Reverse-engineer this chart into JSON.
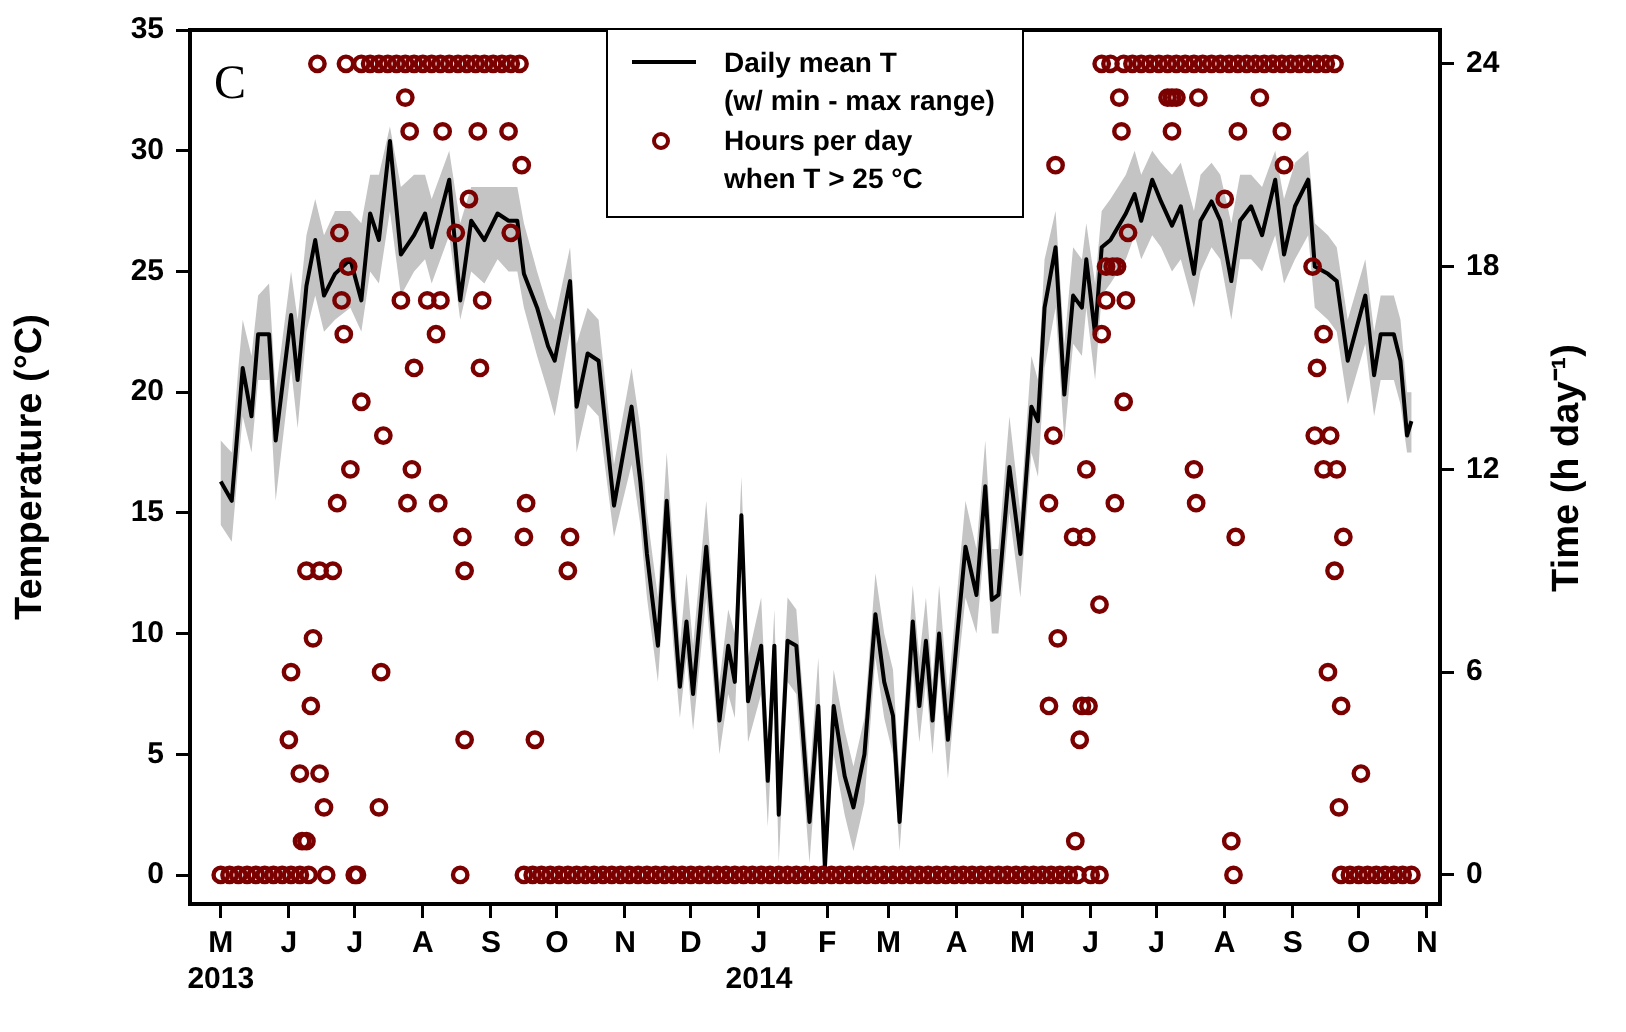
{
  "chart_data": {
    "type": "line",
    "ylabel": "Temperature (°C)",
    "y2label": "Time (h day⁻¹)",
    "annotations": [
      "C"
    ],
    "legend": "top",
    "xlim": [
      "2013-04-17",
      "2014-11-07"
    ],
    "xticks": [
      {
        "value": "2013-05-01",
        "label": "M\n2013"
      },
      {
        "value": "2013-06-01",
        "label": "J"
      },
      {
        "value": "2013-07-01",
        "label": "J"
      },
      {
        "value": "2013-08-01",
        "label": "A"
      },
      {
        "value": "2013-09-01",
        "label": "S"
      },
      {
        "value": "2013-10-01",
        "label": "O"
      },
      {
        "value": "2013-11-01",
        "label": "N"
      },
      {
        "value": "2013-12-01",
        "label": "D"
      },
      {
        "value": "2014-01-01",
        "label": "J\n2014"
      },
      {
        "value": "2014-02-01",
        "label": "F"
      },
      {
        "value": "2014-03-01",
        "label": "M"
      },
      {
        "value": "2014-04-01",
        "label": "A"
      },
      {
        "value": "2014-05-01",
        "label": "M"
      },
      {
        "value": "2014-06-01",
        "label": "J"
      },
      {
        "value": "2014-07-01",
        "label": "J"
      },
      {
        "value": "2014-08-01",
        "label": "A"
      },
      {
        "value": "2014-09-01",
        "label": "S"
      },
      {
        "value": "2014-10-01",
        "label": "O"
      },
      {
        "value": "2014-11-01",
        "label": "N"
      }
    ],
    "ylim": [
      -1.2,
      35
    ],
    "yticks": [
      0,
      5,
      10,
      15,
      20,
      25,
      30,
      35
    ],
    "y2lim": [
      -0.86,
      25
    ],
    "y2ticks": [
      0,
      6,
      12,
      18,
      24
    ],
    "series": [
      {
        "name": "Daily mean T\n(w/ min - max range)",
        "color": "#000000",
        "marker": "none",
        "x": [
          "2013-05-01",
          "2013-05-06",
          "2013-05-09",
          "2013-05-11",
          "2013-05-15",
          "2013-05-18",
          "2013-05-23",
          "2013-05-26",
          "2013-06-02",
          "2013-06-05",
          "2013-06-09",
          "2013-06-13",
          "2013-06-17",
          "2013-06-22",
          "2013-06-29",
          "2013-07-04",
          "2013-07-08",
          "2013-07-12",
          "2013-07-17",
          "2013-07-22",
          "2013-07-28",
          "2013-08-02",
          "2013-08-05",
          "2013-08-13",
          "2013-08-18",
          "2013-08-23",
          "2013-08-29",
          "2013-09-04",
          "2013-09-09",
          "2013-09-13",
          "2013-09-16",
          "2013-09-22",
          "2013-09-27",
          "2013-09-30",
          "2013-10-07",
          "2013-10-10",
          "2013-10-15",
          "2013-10-20",
          "2013-10-27",
          "2013-11-04",
          "2013-11-08",
          "2013-11-11",
          "2013-11-16",
          "2013-11-20",
          "2013-11-23",
          "2013-11-26",
          "2013-11-29",
          "2013-12-02",
          "2013-12-08",
          "2013-12-14",
          "2013-12-18",
          "2013-12-21",
          "2013-12-24",
          "2013-12-27",
          "2014-01-02",
          "2014-01-05",
          "2014-01-08",
          "2014-01-10",
          "2014-01-14",
          "2014-01-18",
          "2014-01-24",
          "2014-01-28",
          "2014-01-31",
          "2014-02-04",
          "2014-02-09",
          "2014-02-13",
          "2014-02-18",
          "2014-02-23",
          "2014-02-27",
          "2014-03-03",
          "2014-03-06",
          "2014-03-12",
          "2014-03-15",
          "2014-03-18",
          "2014-03-21",
          "2014-03-24",
          "2014-03-28",
          "2014-04-01",
          "2014-04-05",
          "2014-04-10",
          "2014-04-14",
          "2014-04-17",
          "2014-04-20",
          "2014-04-25",
          "2014-04-30",
          "2014-05-05",
          "2014-05-08",
          "2014-05-11",
          "2014-05-16",
          "2014-05-20",
          "2014-05-24",
          "2014-05-28",
          "2014-05-30",
          "2014-06-03",
          "2014-06-06",
          "2014-06-10",
          "2014-06-17",
          "2014-06-21",
          "2014-06-24",
          "2014-06-29",
          "2014-07-03",
          "2014-07-08",
          "2014-07-12",
          "2014-07-18",
          "2014-07-21",
          "2014-07-26",
          "2014-07-30",
          "2014-08-04",
          "2014-08-08",
          "2014-08-13",
          "2014-08-18",
          "2014-08-24",
          "2014-08-28",
          "2014-09-02",
          "2014-09-08",
          "2014-09-11",
          "2014-09-17",
          "2014-09-21",
          "2014-09-26",
          "2014-10-04",
          "2014-10-08",
          "2014-10-11",
          "2014-10-17",
          "2014-10-20",
          "2014-10-23",
          "2014-10-25"
        ],
        "values": [
          16.3,
          15.5,
          18.8,
          21.0,
          19.0,
          22.4,
          22.4,
          18.0,
          23.2,
          20.5,
          24.4,
          26.3,
          24.0,
          24.9,
          25.5,
          23.8,
          27.4,
          26.3,
          30.4,
          25.7,
          26.5,
          27.4,
          26.0,
          28.8,
          23.8,
          27.1,
          26.3,
          27.4,
          27.1,
          27.1,
          24.9,
          23.5,
          21.9,
          21.3,
          24.6,
          19.4,
          21.6,
          21.3,
          15.3,
          19.4,
          16.3,
          13.3,
          9.5,
          15.5,
          11.4,
          7.8,
          10.5,
          7.5,
          13.6,
          6.4,
          9.5,
          8.0,
          14.9,
          7.2,
          9.5,
          3.9,
          9.5,
          2.5,
          9.7,
          9.5,
          2.2,
          7.0,
          0.3,
          7.0,
          4.1,
          2.8,
          5.0,
          10.8,
          8.0,
          6.6,
          2.2,
          10.5,
          7.0,
          9.7,
          6.4,
          10.0,
          5.6,
          9.7,
          13.6,
          11.6,
          16.1,
          11.4,
          11.6,
          16.9,
          13.3,
          19.4,
          18.8,
          23.5,
          26.0,
          19.9,
          24.0,
          23.5,
          25.5,
          22.4,
          26.0,
          26.3,
          27.4,
          28.2,
          27.1,
          28.8,
          27.9,
          26.9,
          27.7,
          24.9,
          27.1,
          27.9,
          27.1,
          24.6,
          27.1,
          27.7,
          26.5,
          28.8,
          25.7,
          27.7,
          28.8,
          25.2,
          24.9,
          24.6,
          21.3,
          24.0,
          20.7,
          22.4,
          22.4,
          21.3,
          18.2,
          18.8
        ],
        "lower": [
          14.5,
          13.8,
          17,
          19,
          17.5,
          20.5,
          20.5,
          15.5,
          21,
          18.5,
          22.5,
          24,
          22.5,
          23,
          23.5,
          22.5,
          25,
          24.5,
          27.5,
          24,
          25,
          25.5,
          24.5,
          26.5,
          23,
          25,
          24.5,
          25.5,
          25,
          25,
          23.5,
          21.5,
          20,
          19,
          22.5,
          17.5,
          19.5,
          19,
          14,
          17,
          14.5,
          11.5,
          8,
          13.5,
          9.5,
          6.5,
          9,
          6,
          11.5,
          5,
          7.5,
          6.5,
          13,
          5.5,
          7.5,
          2,
          7.5,
          0.5,
          8,
          7.5,
          0.5,
          5.5,
          0,
          5,
          2.5,
          1,
          3,
          9,
          6.5,
          5,
          1,
          8.5,
          5.5,
          8,
          5,
          8.5,
          4,
          8,
          11.5,
          10,
          14,
          10,
          10,
          15,
          11.5,
          17.5,
          16.5,
          21,
          23.5,
          18,
          22,
          21.5,
          23.5,
          20.5,
          24,
          24.5,
          25.5,
          26.5,
          25.5,
          26.5,
          26,
          25,
          25.5,
          23.5,
          25,
          26,
          25.5,
          23,
          25.5,
          25.5,
          25,
          26.5,
          24.5,
          25.5,
          26.5,
          23.5,
          23,
          22.5,
          19.5,
          22,
          19,
          20.5,
          20.5,
          19.5,
          17.5,
          17.5
        ],
        "upper": [
          18,
          17.5,
          21,
          23,
          21.5,
          24,
          24.5,
          20,
          25,
          23,
          26.5,
          28,
          26.5,
          27.5,
          27.5,
          27,
          29,
          29,
          31,
          28.5,
          29,
          29,
          28,
          30,
          27,
          28.5,
          28.5,
          28.5,
          28.5,
          28.5,
          27,
          25,
          23.5,
          23,
          26,
          22,
          23.5,
          23,
          17,
          21,
          18.5,
          15,
          11.5,
          17.5,
          13.5,
          9.5,
          12.5,
          9.5,
          15.5,
          8,
          11,
          10,
          16.5,
          9,
          11.5,
          5.5,
          11,
          4.5,
          11.5,
          11,
          4,
          9,
          2,
          8.5,
          6,
          4.5,
          6.5,
          12.5,
          10,
          8.5,
          4,
          12,
          9,
          11.5,
          8,
          12,
          7.5,
          11.5,
          15.5,
          13.5,
          18,
          13.5,
          13.5,
          19,
          15,
          21.5,
          20.5,
          25.5,
          27.5,
          22,
          26,
          25.5,
          27,
          24.5,
          27.5,
          28,
          29,
          30,
          29,
          30,
          29.5,
          29,
          29.5,
          27.5,
          29,
          29.5,
          29,
          27,
          29,
          29,
          28.5,
          30,
          28,
          29.5,
          30,
          27,
          26.5,
          26,
          23,
          25.5,
          22.5,
          24,
          24,
          23,
          20,
          20
        ]
      },
      {
        "name": "Hours per day\nwhen T > 25 °C",
        "type": "scatter",
        "axis": "y2",
        "color": "#7b0000",
        "marker": "circle",
        "x": [
          "2013-05-01",
          "2013-05-05",
          "2013-05-09",
          "2013-05-13",
          "2013-05-17",
          "2013-05-21",
          "2013-05-25",
          "2013-05-29",
          "2013-06-02",
          "2013-06-06",
          "2013-06-10",
          "2013-06-18",
          "2013-07-01",
          "2013-07-02",
          "2013-08-18",
          "2013-09-16",
          "2013-09-20",
          "2013-09-24",
          "2013-09-28",
          "2013-10-02",
          "2013-10-06",
          "2013-10-10",
          "2013-10-14",
          "2013-10-18",
          "2013-10-22",
          "2013-10-26",
          "2013-10-30",
          "2013-11-03",
          "2013-11-07",
          "2013-11-11",
          "2013-11-15",
          "2013-11-19",
          "2013-11-23",
          "2013-11-27",
          "2013-12-01",
          "2013-12-05",
          "2013-12-09",
          "2013-12-13",
          "2013-12-17",
          "2013-12-21",
          "2013-12-25",
          "2013-12-29",
          "2014-01-02",
          "2014-01-06",
          "2014-01-10",
          "2014-01-14",
          "2014-01-18",
          "2014-01-22",
          "2014-01-26",
          "2014-01-30",
          "2014-02-03",
          "2014-02-07",
          "2014-02-11",
          "2014-02-15",
          "2014-02-19",
          "2014-02-23",
          "2014-02-27",
          "2014-03-03",
          "2014-03-07",
          "2014-03-11",
          "2014-03-15",
          "2014-03-19",
          "2014-03-23",
          "2014-03-27",
          "2014-03-31",
          "2014-04-04",
          "2014-04-08",
          "2014-04-12",
          "2014-04-16",
          "2014-04-20",
          "2014-04-24",
          "2014-04-28",
          "2014-05-02",
          "2014-05-06",
          "2014-05-10",
          "2014-05-14",
          "2014-05-18",
          "2014-05-22",
          "2014-05-26",
          "2014-06-01",
          "2014-06-05",
          "2014-08-05",
          "2014-09-23",
          "2014-09-27",
          "2014-10-01",
          "2014-10-05",
          "2014-10-09",
          "2014-10-13",
          "2014-10-17",
          "2014-10-21",
          "2014-10-25",
          "2013-06-14",
          "2013-06-27",
          "2013-07-04",
          "2013-07-08",
          "2013-07-12",
          "2013-07-16",
          "2013-07-20",
          "2013-07-24",
          "2013-07-28",
          "2013-08-01",
          "2013-08-05",
          "2013-08-09",
          "2013-08-13",
          "2013-08-17",
          "2013-08-21",
          "2013-08-25",
          "2013-08-29",
          "2013-09-02",
          "2013-09-06",
          "2013-09-10",
          "2013-09-14",
          "2014-06-06",
          "2014-06-10",
          "2014-06-16",
          "2014-06-20",
          "2014-06-24",
          "2014-06-28",
          "2014-07-02",
          "2014-07-06",
          "2014-07-10",
          "2014-07-14",
          "2014-07-18",
          "2014-07-22",
          "2014-07-26",
          "2014-07-30",
          "2014-08-03",
          "2014-08-07",
          "2014-08-11",
          "2014-08-15",
          "2014-08-19",
          "2014-08-23",
          "2014-08-27",
          "2014-08-31",
          "2014-09-04",
          "2014-09-08",
          "2014-09-12",
          "2014-09-16",
          "2014-09-20",
          "2013-07-24",
          "2013-07-26",
          "2013-08-10",
          "2013-08-26",
          "2013-09-09",
          "2013-09-15",
          "2013-08-22",
          "2013-06-24",
          "2013-08-16",
          "2013-09-10",
          "2013-06-28",
          "2013-06-25",
          "2013-07-22",
          "2013-08-03",
          "2013-08-09",
          "2013-08-28",
          "2013-06-26",
          "2013-08-07",
          "2013-07-28",
          "2013-08-27",
          "2013-07-04",
          "2013-07-14",
          "2013-06-29",
          "2013-07-27",
          "2013-06-23",
          "2013-07-25",
          "2013-08-08",
          "2013-09-17",
          "2013-08-19",
          "2013-09-16",
          "2013-10-07",
          "2013-06-09",
          "2013-06-15",
          "2013-06-21",
          "2013-08-20",
          "2013-10-06",
          "2013-06-12",
          "2013-06-02",
          "2013-07-13",
          "2013-06-11",
          "2013-06-01",
          "2013-08-20",
          "2013-09-21",
          "2013-06-06",
          "2013-06-15",
          "2013-06-17",
          "2013-07-12",
          "2013-06-07",
          "2013-06-09",
          "2014-06-14",
          "2014-07-06",
          "2014-07-08",
          "2014-07-10",
          "2014-07-20",
          "2014-08-17",
          "2014-06-15",
          "2014-07-08",
          "2014-08-07",
          "2014-08-27",
          "2014-05-16",
          "2014-08-28",
          "2014-08-01",
          "2014-06-18",
          "2014-06-08",
          "2014-06-11",
          "2014-06-13",
          "2014-09-10",
          "2014-06-08",
          "2014-06-17",
          "2014-06-06",
          "2014-09-15",
          "2014-09-12",
          "2014-06-16",
          "2014-05-15",
          "2014-09-11",
          "2014-09-18",
          "2014-05-30",
          "2014-07-18",
          "2014-09-15",
          "2014-09-21",
          "2014-05-13",
          "2014-06-12",
          "2014-07-19",
          "2014-05-24",
          "2014-05-30",
          "2014-08-06",
          "2014-09-24",
          "2014-09-20",
          "2014-06-05",
          "2014-05-17",
          "2014-09-17",
          "2014-05-13",
          "2014-05-28",
          "2014-05-31",
          "2014-09-23",
          "2014-05-27",
          "2014-10-02",
          "2014-09-22",
          "2014-05-25",
          "2014-08-04"
        ],
        "values": [
          0,
          0,
          0,
          0,
          0,
          0,
          0,
          0,
          0,
          0,
          0,
          0,
          0,
          0,
          0,
          0,
          0,
          0,
          0,
          0,
          0,
          0,
          0,
          0,
          0,
          0,
          0,
          0,
          0,
          0,
          0,
          0,
          0,
          0,
          0,
          0,
          0,
          0,
          0,
          0,
          0,
          0,
          0,
          0,
          0,
          0,
          0,
          0,
          0,
          0,
          0,
          0,
          0,
          0,
          0,
          0,
          0,
          0,
          0,
          0,
          0,
          0,
          0,
          0,
          0,
          0,
          0,
          0,
          0,
          0,
          0,
          0,
          0,
          0,
          0,
          0,
          0,
          0,
          0,
          0,
          0,
          0,
          0,
          0,
          0,
          0,
          0,
          0,
          0,
          0,
          0,
          24,
          24,
          24,
          24,
          24,
          24,
          24,
          24,
          24,
          24,
          24,
          24,
          24,
          24,
          24,
          24,
          24,
          24,
          24,
          24,
          24,
          24,
          24,
          24,
          24,
          24,
          24,
          24,
          24,
          24,
          24,
          24,
          24,
          24,
          24,
          24,
          24,
          24,
          24,
          24,
          24,
          24,
          24,
          24,
          24,
          24,
          24,
          24,
          23,
          22,
          22,
          22,
          22,
          21,
          20,
          19,
          19,
          19,
          18,
          17,
          17,
          17,
          17,
          17,
          16,
          16,
          15,
          15,
          14,
          13,
          12,
          12,
          11,
          11,
          11,
          11,
          10,
          10,
          10,
          9,
          9,
          9,
          9,
          9,
          7,
          6,
          6,
          5,
          4,
          4,
          4,
          3,
          3,
          2,
          2,
          1,
          1,
          23,
          23,
          23,
          23,
          23,
          23,
          22,
          22,
          22,
          22,
          21,
          21,
          20,
          19,
          18,
          18,
          18,
          18,
          17,
          17,
          16,
          16,
          15,
          14,
          13,
          13,
          13,
          12,
          12,
          12,
          12,
          11,
          11,
          11,
          10,
          10,
          10,
          10,
          9,
          8,
          7,
          6,
          5,
          5,
          5,
          5,
          4,
          3,
          2,
          1,
          1
        ]
      }
    ]
  }
}
